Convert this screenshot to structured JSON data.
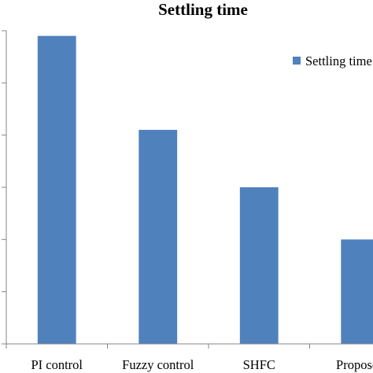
{
  "chart_data": {
    "type": "bar",
    "title": "Settling time",
    "xlabel": "",
    "ylabel": "",
    "categories": [
      "PI control",
      "Fuzzy control",
      "SHFC",
      "Proposed"
    ],
    "series": [
      {
        "name": "Settling time",
        "values": [
          5.9,
          4.1,
          3.0,
          2.0
        ],
        "color": "#4f81bd"
      }
    ],
    "ylim": [
      0,
      6
    ],
    "y_tick_step": 1,
    "y_tick_labels_visible": false,
    "grid": false,
    "legend_position": "top-right",
    "colors": {
      "bar": "#4f81bd",
      "axis": "#868686",
      "text": "#000000"
    }
  }
}
